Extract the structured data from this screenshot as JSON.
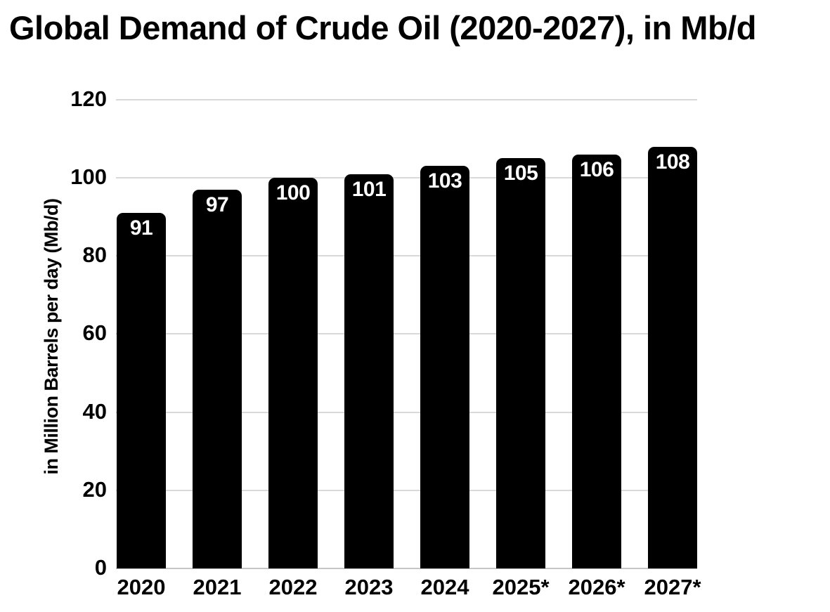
{
  "chart_data": {
    "type": "bar",
    "title": "Global Demand of Crude Oil (2020-2027), in Mb/d",
    "ylabel": "in Million Barrels per day (Mb/d)",
    "xlabel": "",
    "categories": [
      "2020",
      "2021",
      "2022",
      "2023",
      "2024",
      "2025*",
      "2026*",
      "2027*"
    ],
    "values": [
      91,
      97,
      100,
      101,
      103,
      105,
      106,
      108
    ],
    "ylim": [
      0,
      120
    ],
    "yticks": [
      0,
      20,
      40,
      60,
      80,
      100,
      120
    ],
    "grid": true,
    "legend_position": "none",
    "bar_color": "#000000",
    "value_label_color": "#ffffff",
    "grid_color": "#d9d9d9",
    "axis_line_color": "#c6c6c6",
    "text_color": "#000000",
    "background_color": "#ffffff"
  }
}
